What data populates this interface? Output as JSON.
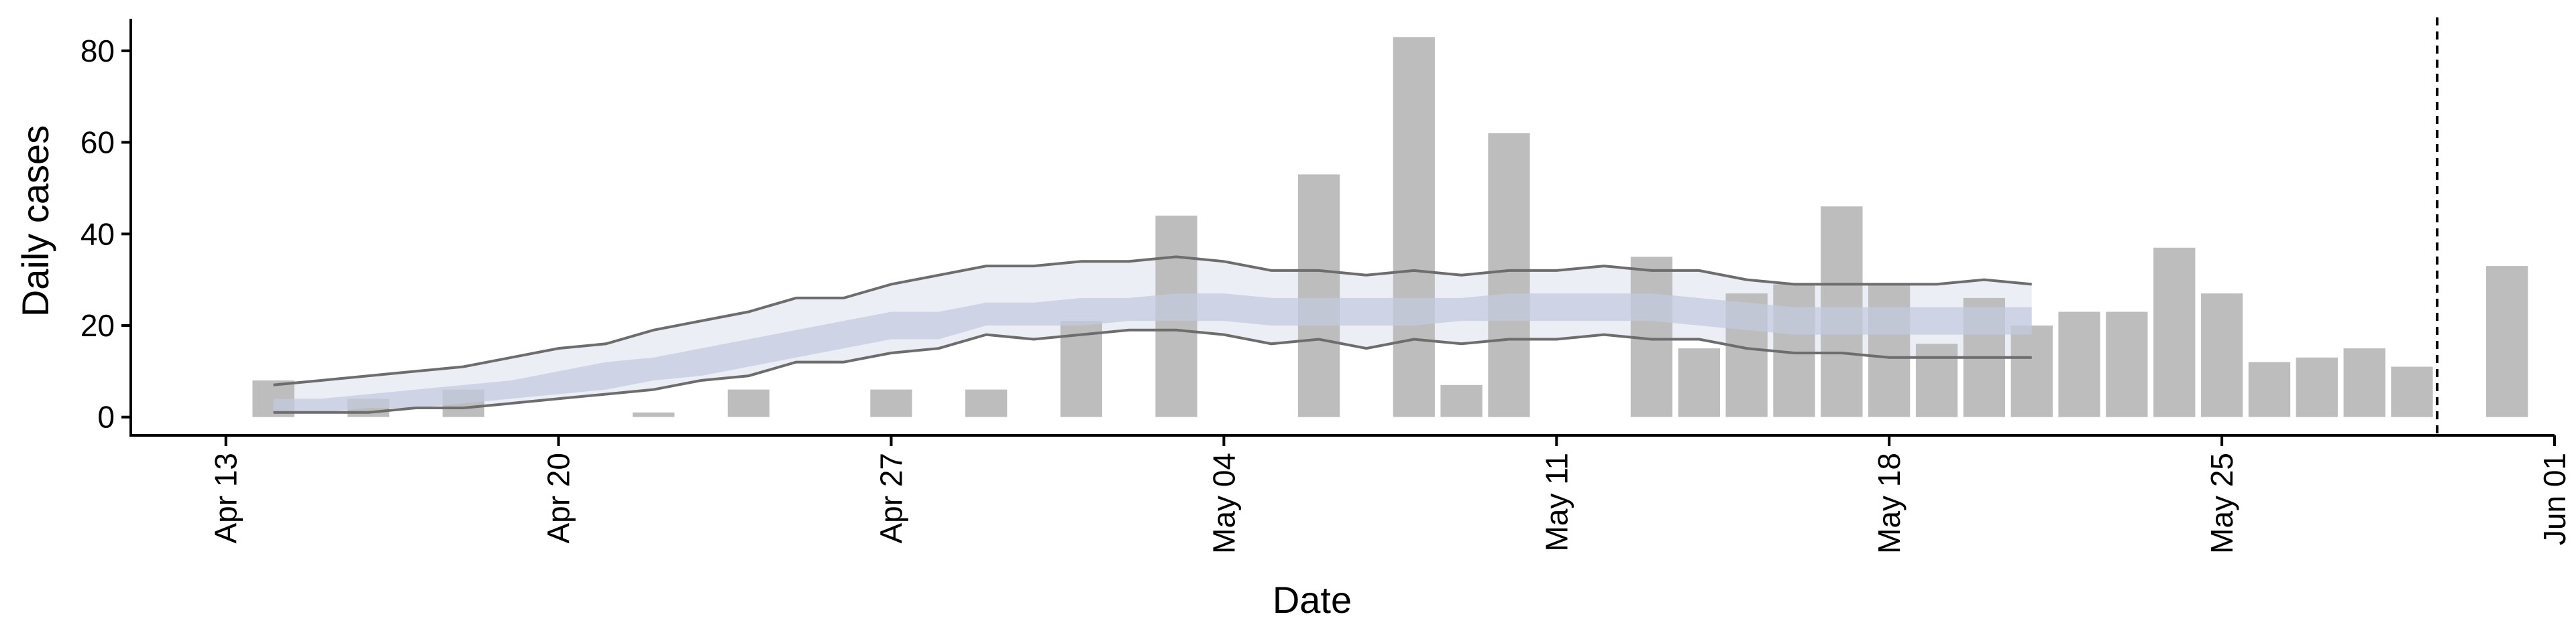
{
  "chart_data": {
    "type": "bar",
    "xlabel": "Date",
    "ylabel": "Daily cases",
    "ylim": [
      -4,
      87
    ],
    "xlim": [
      "2020-04-11",
      "2020-06-01"
    ],
    "y_ticks": [
      0,
      20,
      40,
      60,
      80
    ],
    "x_ticks": [
      {
        "date": "2020-04-13",
        "label": "Apr 13"
      },
      {
        "date": "2020-04-20",
        "label": "Apr 20"
      },
      {
        "date": "2020-04-27",
        "label": "Apr 27"
      },
      {
        "date": "2020-05-04",
        "label": "May 04"
      },
      {
        "date": "2020-05-11",
        "label": "May 11"
      },
      {
        "date": "2020-05-18",
        "label": "May 18"
      },
      {
        "date": "2020-05-25",
        "label": "May 25"
      },
      {
        "date": "2020-06-01",
        "label": "Jun 01"
      }
    ],
    "grid": false,
    "bars": {
      "color": "#bdbdbd",
      "dates": [
        "2020-04-14",
        "2020-04-15",
        "2020-04-16",
        "2020-04-17",
        "2020-04-18",
        "2020-04-19",
        "2020-04-20",
        "2020-04-21",
        "2020-04-22",
        "2020-04-23",
        "2020-04-24",
        "2020-04-25",
        "2020-04-26",
        "2020-04-27",
        "2020-04-28",
        "2020-04-29",
        "2020-04-30",
        "2020-05-01",
        "2020-05-02",
        "2020-05-03",
        "2020-05-04",
        "2020-05-05",
        "2020-05-06",
        "2020-05-07",
        "2020-05-08",
        "2020-05-09",
        "2020-05-10",
        "2020-05-11",
        "2020-05-12",
        "2020-05-13",
        "2020-05-14",
        "2020-05-15",
        "2020-05-16",
        "2020-05-17",
        "2020-05-18",
        "2020-05-19",
        "2020-05-20",
        "2020-05-21",
        "2020-05-22",
        "2020-05-23",
        "2020-05-24",
        "2020-05-25",
        "2020-05-26",
        "2020-05-27",
        "2020-05-28",
        "2020-05-29",
        "2020-05-30",
        "2020-05-31"
      ],
      "values": [
        8,
        0,
        4,
        0,
        6,
        0,
        0,
        0,
        1,
        0,
        6,
        0,
        0,
        6,
        0,
        6,
        0,
        21,
        0,
        44,
        0,
        0,
        53,
        0,
        83,
        7,
        62,
        0,
        0,
        35,
        15,
        27,
        29,
        46,
        29,
        16,
        26,
        20,
        23,
        23,
        37,
        27,
        12,
        13,
        15,
        11,
        0,
        33
      ]
    },
    "fit": {
      "dates": [
        "2020-04-14",
        "2020-04-15",
        "2020-04-16",
        "2020-04-17",
        "2020-04-18",
        "2020-04-19",
        "2020-04-20",
        "2020-04-21",
        "2020-04-22",
        "2020-04-23",
        "2020-04-24",
        "2020-04-25",
        "2020-04-26",
        "2020-04-27",
        "2020-04-28",
        "2020-04-29",
        "2020-04-30",
        "2020-05-01",
        "2020-05-02",
        "2020-05-03",
        "2020-05-04",
        "2020-05-05",
        "2020-05-06",
        "2020-05-07",
        "2020-05-08",
        "2020-05-09",
        "2020-05-10",
        "2020-05-11",
        "2020-05-12",
        "2020-05-13",
        "2020-05-14",
        "2020-05-15",
        "2020-05-16",
        "2020-05-17",
        "2020-05-18",
        "2020-05-19",
        "2020-05-20",
        "2020-05-21"
      ],
      "outer_upper": [
        7,
        8,
        9,
        10,
        11,
        13,
        15,
        16,
        19,
        21,
        23,
        26,
        26,
        29,
        31,
        33,
        33,
        34,
        34,
        35,
        34,
        32,
        32,
        31,
        32,
        31,
        32,
        32,
        33,
        32,
        32,
        30,
        29,
        29,
        29,
        29,
        30,
        29
      ],
      "outer_lower": [
        1,
        1,
        1,
        2,
        2,
        3,
        4,
        5,
        6,
        8,
        9,
        12,
        12,
        14,
        15,
        18,
        17,
        18,
        19,
        19,
        18,
        16,
        17,
        15,
        17,
        16,
        17,
        17,
        18,
        17,
        17,
        15,
        14,
        14,
        13,
        13,
        13,
        13
      ],
      "inner_upper": [
        4,
        4,
        5,
        6,
        7,
        8,
        10,
        12,
        13,
        15,
        17,
        19,
        21,
        23,
        23,
        25,
        25,
        26,
        26,
        27,
        27,
        26,
        26,
        26,
        26,
        26,
        27,
        27,
        27,
        27,
        26,
        25,
        24,
        24,
        24,
        24,
        24,
        24
      ],
      "inner_lower": [
        1,
        1,
        2,
        2,
        3,
        4,
        5,
        6,
        8,
        9,
        11,
        13,
        15,
        17,
        17,
        20,
        20,
        20,
        21,
        21,
        21,
        20,
        20,
        20,
        20,
        21,
        21,
        21,
        21,
        21,
        20,
        19,
        18,
        18,
        18,
        18,
        18,
        18
      ],
      "colors": {
        "outer_band": "#e9ebf3",
        "inner_band": "#c4cbdf",
        "interval_line": "#6d6d6d"
      }
    },
    "vline": {
      "date": "2020-05-30",
      "style": "dashed",
      "color": "#000000"
    }
  }
}
